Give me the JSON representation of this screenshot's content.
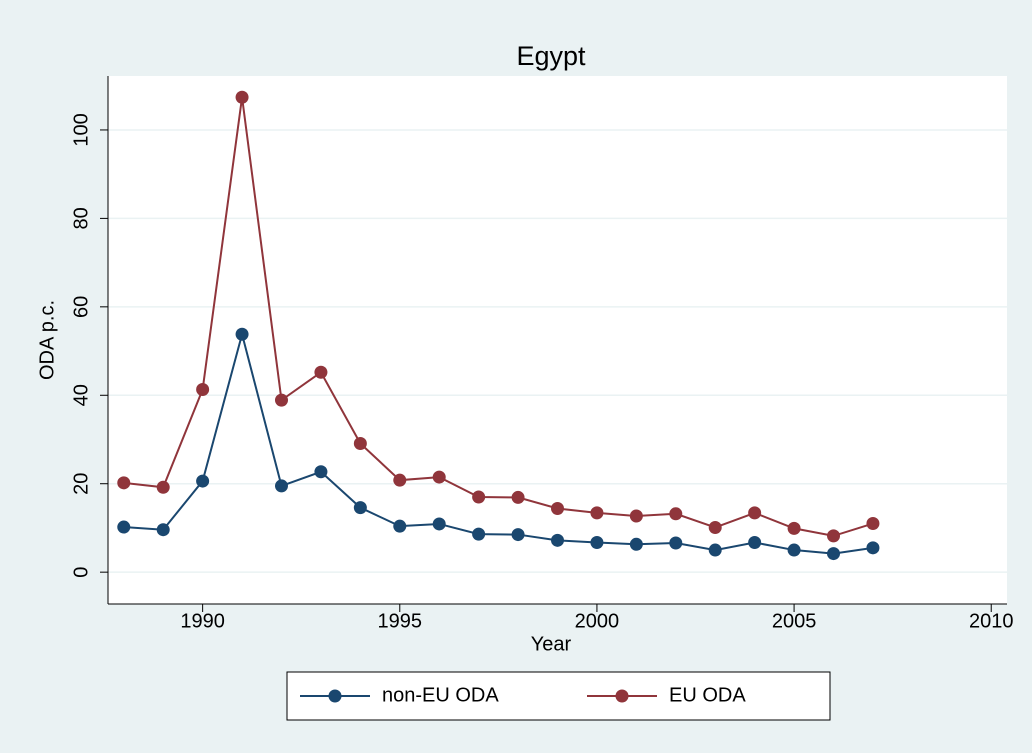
{
  "chart_data": {
    "type": "line",
    "title": "Egypt",
    "xlabel": "Year",
    "ylabel": "ODA p.c.",
    "x": [
      1988,
      1989,
      1990,
      1991,
      1992,
      1993,
      1994,
      1995,
      1996,
      1997,
      1998,
      1999,
      2000,
      2001,
      2002,
      2003,
      2004,
      2005,
      2006,
      2007
    ],
    "series": [
      {
        "name": "non-EU ODA",
        "color": "#1a476f",
        "values": [
          10.2,
          9.6,
          20.6,
          53.8,
          19.5,
          22.7,
          14.6,
          10.4,
          10.9,
          8.6,
          8.5,
          7.2,
          6.7,
          6.3,
          6.6,
          5.0,
          6.7,
          5.0,
          4.2,
          5.5
        ]
      },
      {
        "name": "EU ODA",
        "color": "#90353b",
        "values": [
          20.2,
          19.2,
          41.3,
          107.4,
          38.9,
          45.2,
          29.1,
          20.8,
          21.5,
          17.0,
          16.9,
          14.4,
          13.4,
          12.7,
          13.2,
          10.1,
          13.4,
          9.9,
          8.2,
          11.0
        ]
      }
    ],
    "xlim": [
      1987.6,
      2010.4
    ],
    "xticks": [
      1990,
      1995,
      2000,
      2005,
      2010
    ],
    "ylim": [
      -7.2,
      112.2
    ],
    "yticks": [
      0,
      20,
      40,
      60,
      80,
      100
    ],
    "grid": true,
    "legend": "bottom"
  }
}
